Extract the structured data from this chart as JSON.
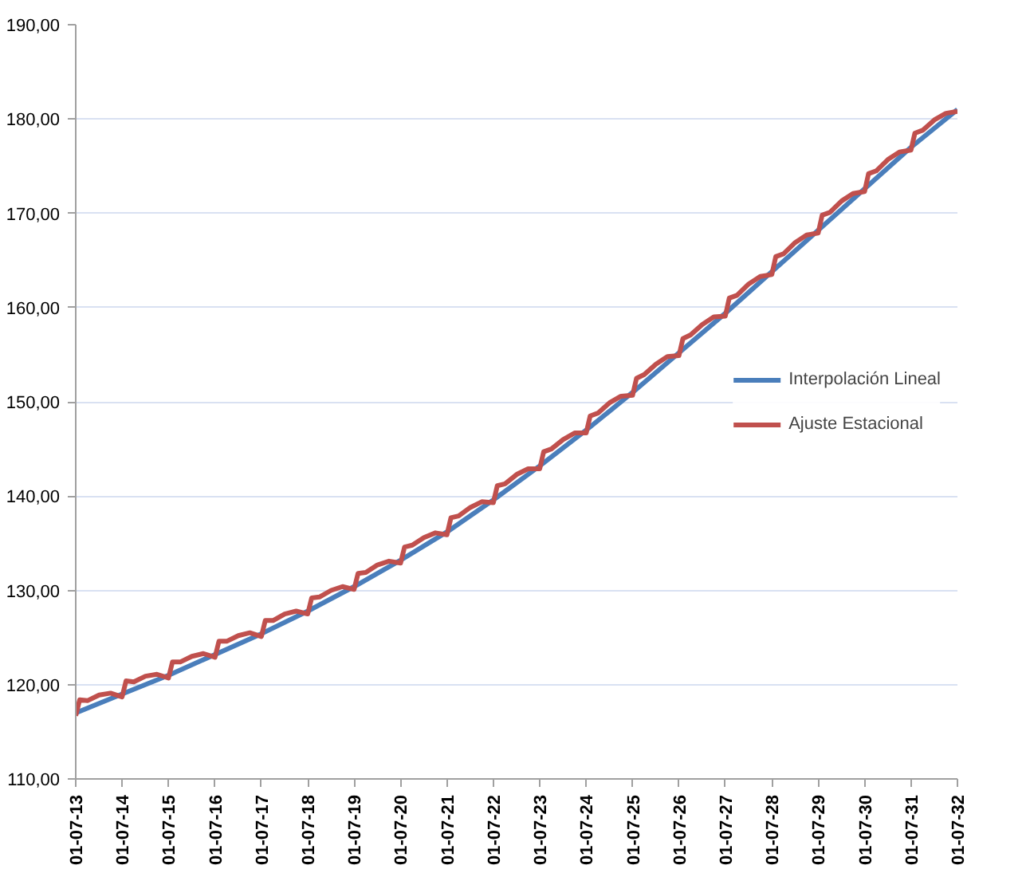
{
  "chart_data": {
    "type": "line",
    "xlim": [
      "2013-07-01",
      "2032-07-01"
    ],
    "xticks": [
      {
        "value": "2013-07-01",
        "label": "01-07-13"
      },
      {
        "value": "2014-07-01",
        "label": "01-07-14"
      },
      {
        "value": "2015-07-01",
        "label": "01-07-15"
      },
      {
        "value": "2016-07-01",
        "label": "01-07-16"
      },
      {
        "value": "2017-07-01",
        "label": "01-07-17"
      },
      {
        "value": "2018-07-01",
        "label": "01-07-18"
      },
      {
        "value": "2019-07-01",
        "label": "01-07-19"
      },
      {
        "value": "2020-07-01",
        "label": "01-07-20"
      },
      {
        "value": "2021-07-01",
        "label": "01-07-21"
      },
      {
        "value": "2022-07-01",
        "label": "01-07-22"
      },
      {
        "value": "2023-07-01",
        "label": "01-07-23"
      },
      {
        "value": "2024-07-01",
        "label": "01-07-24"
      },
      {
        "value": "2025-07-01",
        "label": "01-07-25"
      },
      {
        "value": "2026-07-01",
        "label": "01-07-26"
      },
      {
        "value": "2027-07-01",
        "label": "01-07-27"
      },
      {
        "value": "2028-07-01",
        "label": "01-07-28"
      },
      {
        "value": "2029-07-01",
        "label": "01-07-29"
      },
      {
        "value": "2030-07-01",
        "label": "01-07-30"
      },
      {
        "value": "2031-07-01",
        "label": "01-07-31"
      },
      {
        "value": "2032-07-01",
        "label": "01-07-32"
      }
    ],
    "ylim": [
      110,
      190
    ],
    "yticks": [
      {
        "value": 110,
        "label": "110,00"
      },
      {
        "value": 120,
        "label": "120,00"
      },
      {
        "value": 130,
        "label": "130,00"
      },
      {
        "value": 140,
        "label": "140,00"
      },
      {
        "value": 150,
        "label": "150,00"
      },
      {
        "value": 160,
        "label": "160,00"
      },
      {
        "value": 170,
        "label": "170,00"
      },
      {
        "value": 180,
        "label": "180,00"
      },
      {
        "value": 190,
        "label": "190,00"
      }
    ],
    "grid": "y",
    "legend": "right",
    "series": [
      {
        "name": "Interpolación Lineal",
        "color": "#4a7ebb",
        "x": [
          "2013-07-01",
          "2014-07-01",
          "2015-07-01",
          "2016-07-01",
          "2017-07-01",
          "2018-07-01",
          "2019-07-01",
          "2020-07-01",
          "2021-07-01",
          "2022-07-01",
          "2023-07-01",
          "2024-07-01",
          "2025-07-01",
          "2026-07-01",
          "2027-07-01",
          "2028-07-01",
          "2029-07-01",
          "2030-07-01",
          "2031-07-01",
          "2032-07-01"
        ],
        "values": [
          117.0,
          119.0,
          121.0,
          123.2,
          125.4,
          127.8,
          130.4,
          133.2,
          136.2,
          139.6,
          143.2,
          147.0,
          151.0,
          155.2,
          159.4,
          163.8,
          168.2,
          172.6,
          177.0,
          181.0
        ]
      },
      {
        "name": "Ajuste Estacional",
        "color": "#c0504d",
        "x": [
          "2013-07-01",
          "2013-08-01",
          "2013-10-01",
          "2014-01-01",
          "2014-04-01",
          "2014-07-01",
          "2014-08-01",
          "2014-10-01",
          "2015-01-01",
          "2015-04-01",
          "2015-07-01",
          "2015-08-01",
          "2015-10-01",
          "2016-01-01",
          "2016-04-01",
          "2016-07-01",
          "2016-08-01",
          "2016-10-01",
          "2017-01-01",
          "2017-04-01",
          "2017-07-01",
          "2017-08-01",
          "2017-10-01",
          "2018-01-01",
          "2018-04-01",
          "2018-07-01",
          "2018-08-01",
          "2018-10-01",
          "2019-01-01",
          "2019-04-01",
          "2019-07-01",
          "2019-08-01",
          "2019-10-01",
          "2020-01-01",
          "2020-04-01",
          "2020-07-01",
          "2020-08-01",
          "2020-10-01",
          "2021-01-01",
          "2021-04-01",
          "2021-07-01",
          "2021-08-01",
          "2021-10-01",
          "2022-01-01",
          "2022-04-01",
          "2022-07-01",
          "2022-08-01",
          "2022-10-01",
          "2023-01-01",
          "2023-04-01",
          "2023-07-01",
          "2023-08-01",
          "2023-10-01",
          "2024-01-01",
          "2024-04-01",
          "2024-07-01",
          "2024-08-01",
          "2024-10-01",
          "2025-01-01",
          "2025-04-01",
          "2025-07-01",
          "2025-08-01",
          "2025-10-01",
          "2026-01-01",
          "2026-04-01",
          "2026-07-01",
          "2026-08-01",
          "2026-10-01",
          "2027-01-01",
          "2027-04-01",
          "2027-07-01",
          "2027-08-01",
          "2027-10-01",
          "2028-01-01",
          "2028-04-01",
          "2028-07-01",
          "2028-08-01",
          "2028-10-01",
          "2029-01-01",
          "2029-04-01",
          "2029-07-01",
          "2029-08-01",
          "2029-10-01",
          "2030-01-01",
          "2030-04-01",
          "2030-07-01",
          "2030-08-01",
          "2030-10-01",
          "2031-01-01",
          "2031-04-01",
          "2031-07-01",
          "2031-08-01",
          "2031-10-01",
          "2032-01-01",
          "2032-04-01",
          "2032-07-01"
        ],
        "values": [
          116.7,
          118.4,
          118.3,
          118.9,
          119.1,
          118.7,
          120.4,
          120.3,
          120.9,
          121.1,
          120.7,
          122.4,
          122.4,
          123.0,
          123.3,
          122.9,
          124.6,
          124.6,
          125.2,
          125.5,
          125.1,
          126.8,
          126.8,
          127.5,
          127.8,
          127.5,
          129.2,
          129.3,
          130.0,
          130.4,
          130.1,
          131.8,
          131.9,
          132.7,
          133.1,
          132.9,
          134.6,
          134.8,
          135.6,
          136.1,
          135.9,
          137.7,
          137.9,
          138.8,
          139.4,
          139.3,
          141.1,
          141.3,
          142.3,
          142.9,
          142.9,
          144.7,
          145.0,
          146.0,
          146.7,
          146.7,
          148.5,
          148.8,
          149.9,
          150.6,
          150.7,
          152.5,
          152.9,
          154.0,
          154.8,
          154.9,
          156.7,
          157.1,
          158.2,
          159.0,
          159.1,
          161.0,
          161.3,
          162.5,
          163.3,
          163.5,
          165.4,
          165.7,
          166.9,
          167.7,
          167.9,
          169.8,
          170.1,
          171.3,
          172.1,
          172.3,
          174.2,
          174.5,
          175.7,
          176.5,
          176.7,
          178.5,
          178.8,
          179.9,
          180.6,
          180.8
        ]
      }
    ]
  }
}
